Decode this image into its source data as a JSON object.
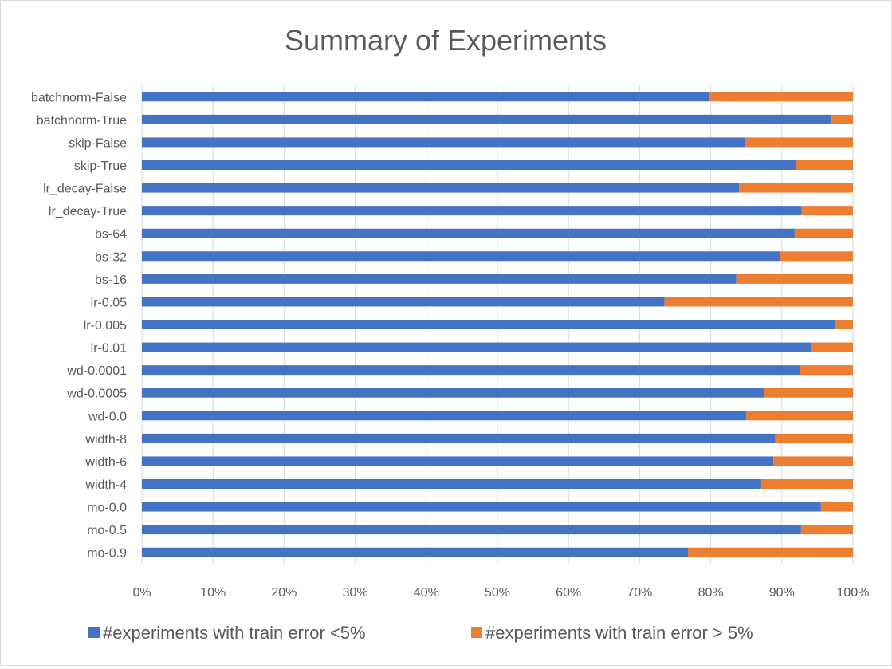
{
  "chart_data": {
    "type": "bar",
    "orientation": "horizontal",
    "stacking": "percent",
    "title": "Summary of Experiments",
    "xlabel": "",
    "ylabel": "",
    "xlim": [
      0,
      100
    ],
    "x_ticks": [
      "0%",
      "10%",
      "20%",
      "30%",
      "40%",
      "50%",
      "60%",
      "70%",
      "80%",
      "90%",
      "100%"
    ],
    "grid": "vertical",
    "legend_position": "bottom",
    "categories": [
      "batchnorm-False",
      "batchnorm-True",
      "skip-False",
      "skip-True",
      "lr_decay-False",
      "lr_decay-True",
      "bs-64",
      "bs-32",
      "bs-16",
      "lr-0.05",
      "lr-0.005",
      "lr-0.01",
      "wd-0.0001",
      "wd-0.0005",
      "wd-0.0",
      "width-8",
      "width-6",
      "width-4",
      "mo-0.0",
      "mo-0.5",
      "mo-0.9"
    ],
    "series": [
      {
        "name": "#experiments with train error <5%",
        "color": "#4472C4",
        "values": [
          79.8,
          97,
          84.8,
          92,
          84,
          92.8,
          91.8,
          89.8,
          83.6,
          73.5,
          97.5,
          94.1,
          92.6,
          87.5,
          85,
          89.1,
          88.8,
          87.1,
          95.5,
          92.7,
          76.8
        ]
      },
      {
        "name": "#experiments with train error > 5%",
        "color": "#ED7D31",
        "values": [
          20.2,
          3,
          15.2,
          8,
          16,
          7.2,
          8.2,
          10.2,
          16.4,
          26.5,
          2.5,
          5.9,
          7.4,
          12.5,
          15,
          10.9,
          11.2,
          12.9,
          4.5,
          7.3,
          23.2
        ]
      }
    ]
  }
}
